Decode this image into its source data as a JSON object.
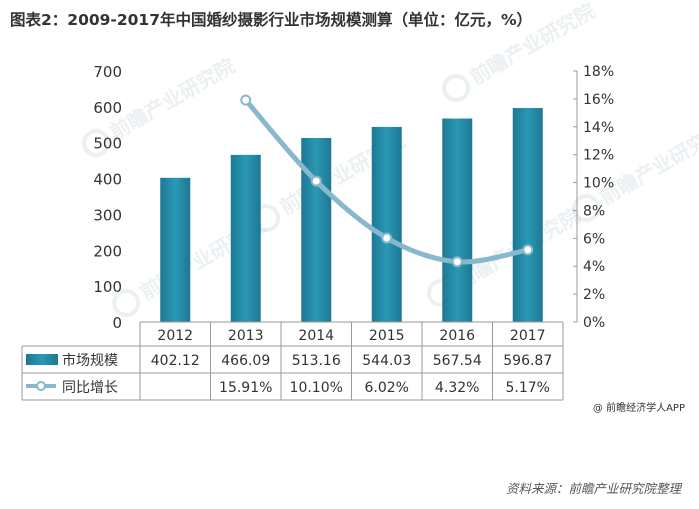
{
  "title": "图表2：2009-2017年中国婚纱摄影行业市场规模测算（单位：亿元，%）",
  "credit": "@ 前瞻经济学人APP",
  "source": "资料来源：前瞻产业研究院整理",
  "watermark": "前瞻产业研究院",
  "colors": {
    "bar": "#2589a5",
    "bar_dark": "#1a6f87",
    "line": "#87b8cd",
    "marker_fill": "#ffffff",
    "grid": "#d0d0d0",
    "text": "#333333"
  },
  "chart_data": {
    "type": "bar",
    "categories": [
      "2012",
      "2013",
      "2014",
      "2015",
      "2016",
      "2017"
    ],
    "series": [
      {
        "name": "市场规模",
        "type": "bar",
        "axis": "left",
        "values": [
          402.12,
          466.09,
          513.16,
          544.03,
          567.54,
          596.87
        ],
        "labels": [
          "402.12",
          "466.09",
          "513.16",
          "544.03",
          "567.54",
          "596.87"
        ]
      },
      {
        "name": "同比增长",
        "type": "line",
        "axis": "right",
        "values": [
          null,
          15.91,
          10.1,
          6.02,
          4.32,
          5.17
        ],
        "labels": [
          "",
          "15.91%",
          "10.10%",
          "6.02%",
          "4.32%",
          "5.17%"
        ]
      }
    ],
    "ylim": [
      0,
      700
    ],
    "y_ticks": [
      "0",
      "100",
      "200",
      "300",
      "400",
      "500",
      "600",
      "700"
    ],
    "y2lim": [
      0,
      18
    ],
    "y2_ticks": [
      "0%",
      "2%",
      "4%",
      "6%",
      "8%",
      "10%",
      "12%",
      "14%",
      "16%",
      "18%"
    ],
    "grid": false,
    "legend": "data-table"
  }
}
